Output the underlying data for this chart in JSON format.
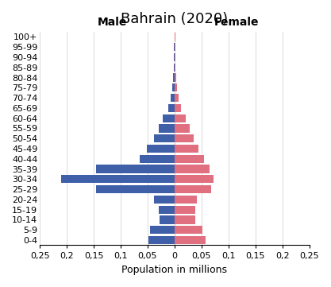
{
  "title": "Bahrain (2020)",
  "xlabel": "Population in millions",
  "age_groups": [
    "0-4",
    "5-9",
    "10-14",
    "15-19",
    "20-24",
    "25-29",
    "30-34",
    "35-39",
    "40-44",
    "45-49",
    "50-54",
    "55-59",
    "60-64",
    "65-69",
    "70-74",
    "75-79",
    "80-84",
    "85-89",
    "90-94",
    "95-99",
    "100+"
  ],
  "male": [
    0.048,
    0.045,
    0.028,
    0.03,
    0.038,
    0.145,
    0.21,
    0.145,
    0.065,
    0.052,
    0.038,
    0.03,
    0.022,
    0.012,
    0.007,
    0.004,
    0.003,
    0.002,
    0.001,
    0.001,
    0.0005
  ],
  "female": [
    0.058,
    0.052,
    0.038,
    0.038,
    0.042,
    0.068,
    0.072,
    0.065,
    0.055,
    0.045,
    0.035,
    0.028,
    0.02,
    0.012,
    0.007,
    0.004,
    0.003,
    0.002,
    0.001,
    0.001,
    0.001
  ],
  "male_color": "#3f5fa8",
  "female_color": "#e07080",
  "male_label": "Male",
  "female_label": "Female",
  "xlim": 0.25,
  "xtick_vals": [
    -0.25,
    -0.2,
    -0.15,
    -0.1,
    -0.05,
    0,
    0.05,
    0.1,
    0.15,
    0.2,
    0.25
  ],
  "xtick_labels": [
    "0,25",
    "0,2",
    "0,15",
    "0,1",
    "0,05",
    "0",
    "0,05",
    "0,1",
    "0,15",
    "0,2",
    "0,25"
  ],
  "background_color": "#ffffff",
  "title_fontsize": 13,
  "label_fontsize": 9,
  "tick_fontsize": 8
}
